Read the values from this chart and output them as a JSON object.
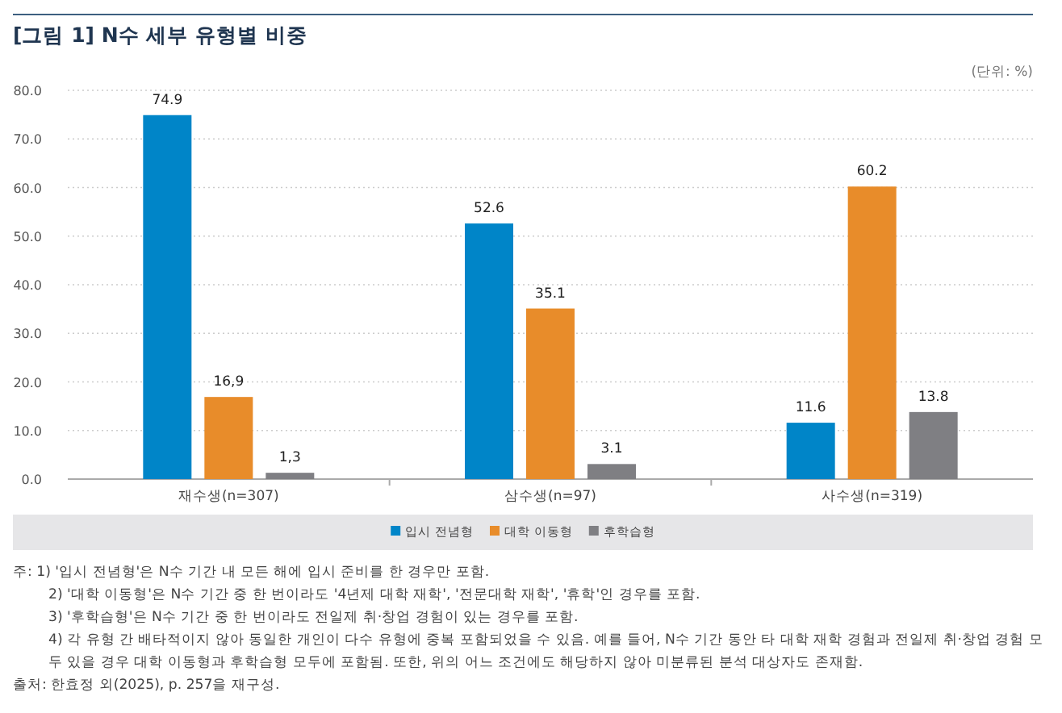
{
  "chart_data": {
    "type": "bar",
    "title": "[그림 1] N수 세부 유형별 비중",
    "ylabel": "(단위: %)",
    "categories": [
      "재수생(n=307)",
      "삼수생(n=97)",
      "사수생(n=319)"
    ],
    "series": [
      {
        "name": "입시 전념형",
        "color": "#0085c8",
        "values": [
          74.9,
          52.6,
          11.6
        ],
        "value_labels": [
          "74.9",
          "52.6",
          "11.6"
        ]
      },
      {
        "name": "대학 이동형",
        "color": "#e88c2a",
        "values": [
          16.9,
          35.1,
          60.2
        ],
        "value_labels": [
          "16,9",
          "35.1",
          "60.2"
        ]
      },
      {
        "name": "후학습형",
        "color": "#7f7f83",
        "values": [
          1.3,
          3.1,
          13.8
        ],
        "value_labels": [
          "1,3",
          "3.1",
          "13.8"
        ]
      }
    ],
    "ylim": [
      0,
      80
    ],
    "yticks": [
      {
        "value": 0,
        "label": "0.0"
      },
      {
        "value": 10,
        "label": "10.0"
      },
      {
        "value": 20,
        "label": "20.0"
      },
      {
        "value": 30,
        "label": "30.0"
      },
      {
        "value": 40,
        "label": "40.0"
      },
      {
        "value": 50,
        "label": "50.0"
      },
      {
        "value": 60,
        "label": "60.0"
      },
      {
        "value": 70,
        "label": "70.0"
      },
      {
        "value": 80,
        "label": "80.0"
      }
    ],
    "grid": "y",
    "legend": "bottom",
    "annotations": [
      "주: 1) '입시 전념형'은 N수 기간 내 모든 해에 입시 준비를 한 경우만 포함.",
      "2) '대학 이동형'은 N수 기간 중 한 번이라도 '4년제 대학 재학', '전문대학 재학', '휴학'인 경우를 포함.",
      "3) '후학습형'은 N수 기간 중 한 번이라도 전일제 취·창업 경험이 있는 경우를 포함.",
      "4) 각 유형 간 배타적이지 않아 동일한 개인이 다수 유형에 중복 포함되었을 수 있음. 예를 들어, N수 기간 동안 타 대학 재학 경험과 전일제 취·창업 경험 모두 있을 경우 대학 이동형과 후학습형 모두에 포함됨. 또한, 위의 어느 조건에도 해당하지 않아 미분류된 분석 대상자도 존재함.",
      "출처: 한효정 외(2025), p. 257을 재구성."
    ]
  }
}
